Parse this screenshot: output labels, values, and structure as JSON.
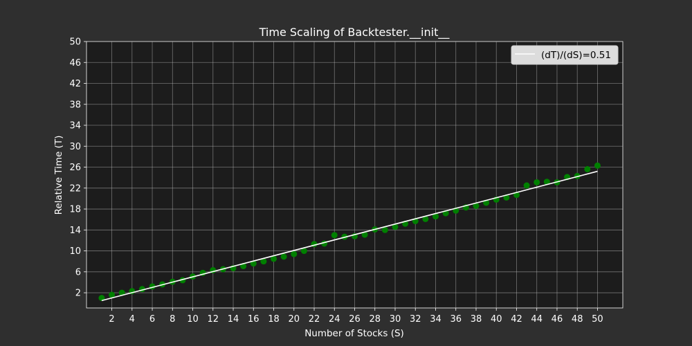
{
  "chart_data": {
    "type": "scatter",
    "title": "Time Scaling of Backtester.__init__",
    "xlabel": "Number of Stocks (S)",
    "ylabel": "Relative Time (T)",
    "xlim": [
      -0.5,
      52.5
    ],
    "ylim": [
      -0.9,
      50
    ],
    "xticks": [
      2,
      4,
      6,
      8,
      10,
      12,
      14,
      16,
      18,
      20,
      22,
      24,
      26,
      28,
      30,
      32,
      34,
      36,
      38,
      40,
      42,
      44,
      46,
      48,
      50
    ],
    "yticks": [
      2,
      6,
      10,
      14,
      18,
      22,
      26,
      30,
      34,
      38,
      42,
      46,
      50
    ],
    "grid": true,
    "legend_position": "top-right",
    "series": [
      {
        "kind": "scatter",
        "color": "#008000",
        "x": [
          1,
          2,
          3,
          4,
          5,
          6,
          7,
          8,
          9,
          10,
          11,
          12,
          13,
          14,
          15,
          16,
          17,
          18,
          19,
          20,
          21,
          22,
          23,
          24,
          25,
          26,
          27,
          28,
          29,
          30,
          31,
          32,
          33,
          34,
          35,
          36,
          37,
          38,
          39,
          40,
          41,
          42,
          43,
          44,
          45,
          46,
          47,
          48,
          49,
          50
        ],
        "y": [
          1.0,
          1.6,
          2.0,
          2.3,
          2.7,
          3.2,
          3.6,
          4.1,
          4.4,
          5.1,
          5.8,
          6.3,
          6.5,
          6.7,
          7.1,
          7.6,
          8.0,
          8.5,
          8.9,
          9.4,
          10.0,
          11.3,
          11.4,
          13.0,
          12.7,
          12.8,
          13.1,
          14.1,
          14.0,
          14.6,
          15.2,
          15.7,
          16.1,
          16.6,
          17.2,
          17.7,
          18.3,
          18.6,
          19.2,
          19.8,
          20.2,
          20.7,
          22.5,
          23.1,
          23.2,
          23.1,
          24.1,
          24.3,
          25.6,
          26.3
        ]
      },
      {
        "kind": "line",
        "name": "(dT)/(dS)=0.51",
        "color": "#ffffff",
        "x": [
          1,
          50
        ],
        "y": [
          0.5,
          25.2
        ]
      }
    ]
  },
  "colors": {
    "background": "#2f2f2f",
    "plot_area": "#1c1c1c",
    "grid": "#bbbbbb",
    "text": "#ffffff",
    "legend_background": "#dcdcdc"
  }
}
